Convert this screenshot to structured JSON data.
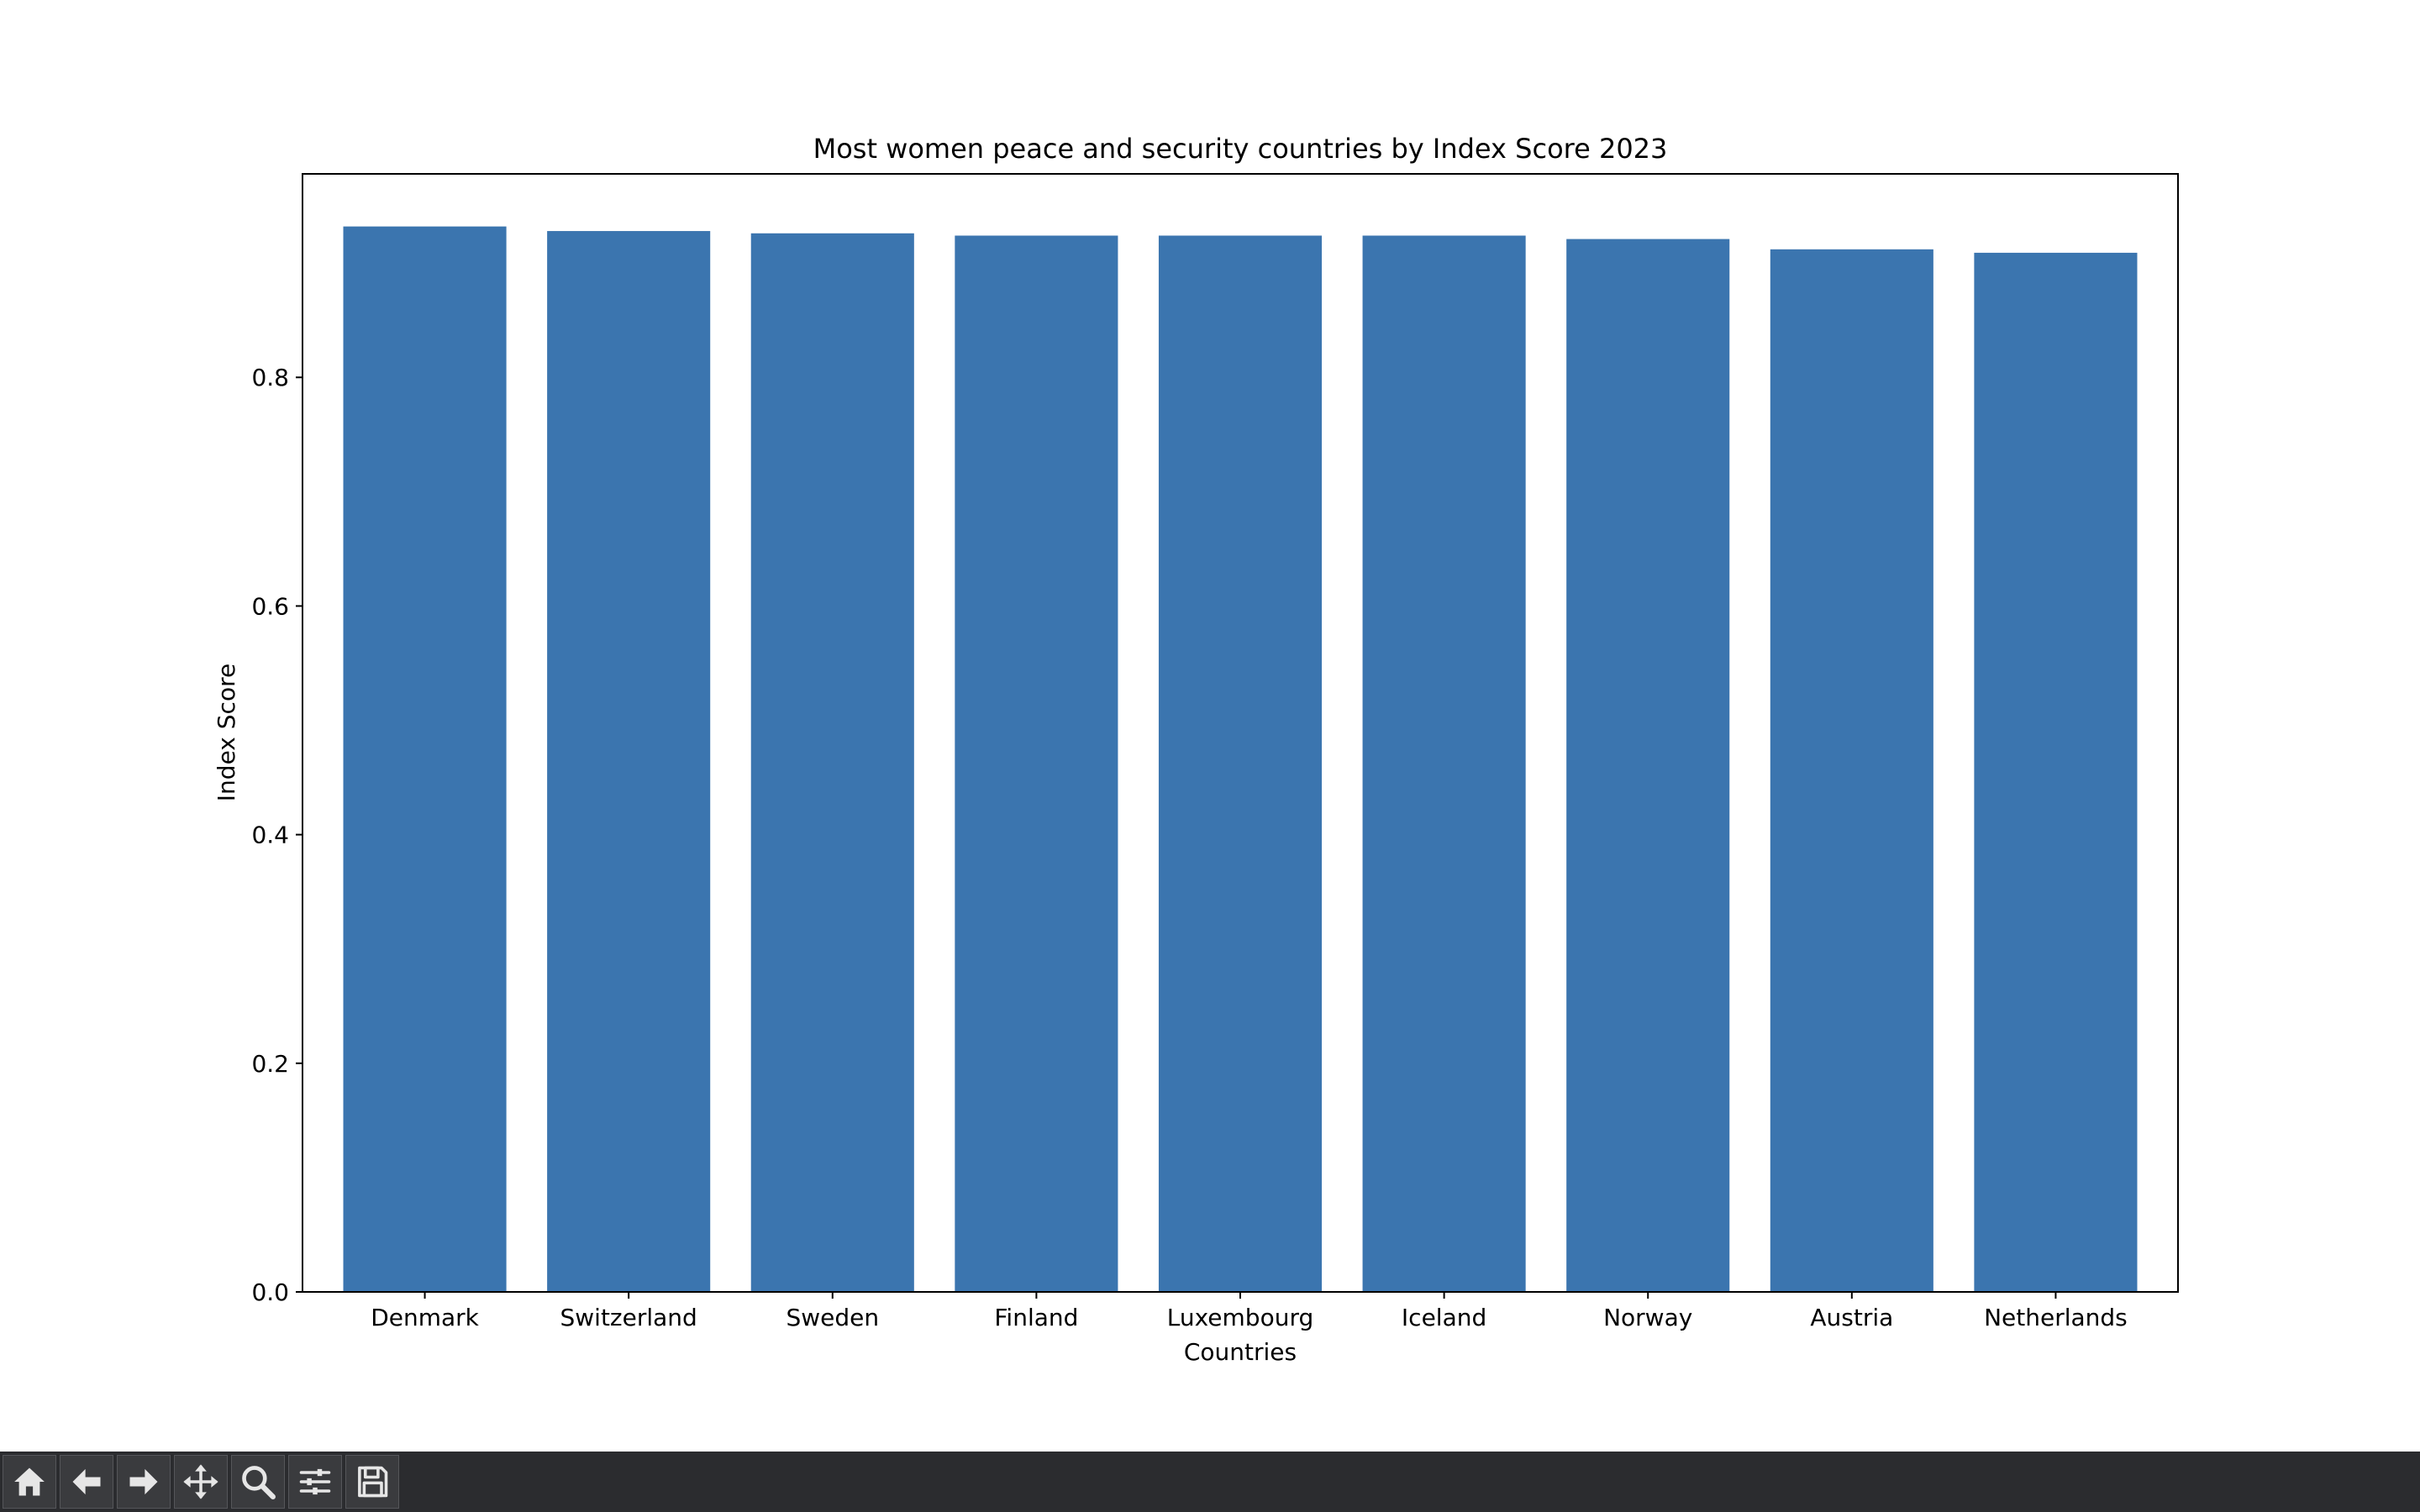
{
  "chart_data": {
    "type": "bar",
    "title": "Most women peace and security countries by Index Score 2023",
    "xlabel": "Countries",
    "ylabel": "Index Score",
    "categories": [
      "Denmark",
      "Switzerland",
      "Sweden",
      "Finland",
      "Luxembourg",
      "Iceland",
      "Norway",
      "Austria",
      "Netherlands"
    ],
    "values": [
      0.932,
      0.928,
      0.926,
      0.924,
      0.924,
      0.924,
      0.921,
      0.912,
      0.909
    ],
    "ylim": [
      0,
      0.978
    ],
    "yticks": [
      0.0,
      0.2,
      0.4,
      0.6,
      0.8
    ],
    "ytick_labels": [
      "0.0",
      "0.2",
      "0.4",
      "0.6",
      "0.8"
    ],
    "grid": false,
    "bar_color": "#3b75af"
  },
  "toolbar": {
    "buttons": [
      {
        "name": "home",
        "icon": "home-icon",
        "tooltip": "Reset original view"
      },
      {
        "name": "back",
        "icon": "arrow-left-icon",
        "tooltip": "Back to previous view"
      },
      {
        "name": "forward",
        "icon": "arrow-right-icon",
        "tooltip": "Forward to next view"
      },
      {
        "name": "pan",
        "icon": "move-icon",
        "tooltip": "Pan axes"
      },
      {
        "name": "zoom",
        "icon": "magnifier-icon",
        "tooltip": "Zoom to rectangle"
      },
      {
        "name": "configure",
        "icon": "sliders-icon",
        "tooltip": "Configure subplots"
      },
      {
        "name": "save",
        "icon": "floppy-disk-icon",
        "tooltip": "Save the figure"
      }
    ]
  }
}
